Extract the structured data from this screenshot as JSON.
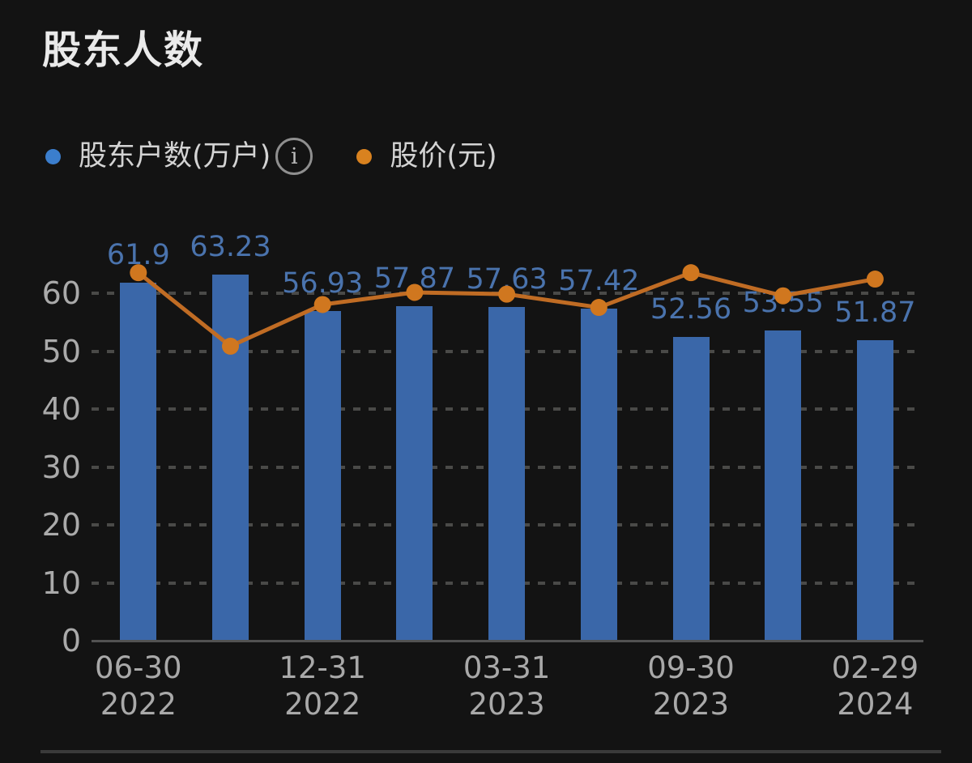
{
  "title": "股东人数",
  "legend": {
    "series1": {
      "label": "股东户数(万户)",
      "dot_color": "#3b7ecd"
    },
    "info_glyph": "i",
    "series2": {
      "label": "股价(元)",
      "dot_color": "#d9821f"
    }
  },
  "colors": {
    "background": "#131313",
    "bar_fill": "#3a67a9",
    "bar_label_text": "#4a73ad",
    "line_stroke": "#c06c24",
    "marker_fill": "#d0771f",
    "axis_text": "#aaaaaa",
    "grid_dash": "#4a4a48"
  },
  "chart_data": {
    "type": "bar",
    "title": "股东人数",
    "grid": "dashed horizontal",
    "legend_position": "top",
    "ylim": [
      0,
      65
    ],
    "y_ticks": [
      "0",
      "10",
      "20",
      "30",
      "40",
      "50",
      "60"
    ],
    "y_tick_values": [
      0,
      10,
      20,
      30,
      40,
      50,
      60
    ],
    "series": [
      {
        "name": "股东户数(万户)",
        "type": "bar",
        "values": [
          61.9,
          63.23,
          56.93,
          57.87,
          57.63,
          57.42,
          52.56,
          53.55,
          51.87
        ],
        "data_labels": [
          "61.9",
          "63.23",
          "56.93",
          "57.87",
          "57.63",
          "57.42",
          "52.56",
          "53.55",
          "51.87"
        ]
      },
      {
        "name": "股价(元)",
        "type": "line",
        "values": [
          63.6,
          50.9,
          58.1,
          60.2,
          59.9,
          57.6,
          63.6,
          59.6,
          62.5
        ],
        "note": "no numeric labels shown on screen; values estimated from left-axis gridlines"
      }
    ],
    "x_tick_labels": [
      {
        "bar_index": 0,
        "line1": "06-30",
        "line2": "2022"
      },
      {
        "bar_index": 2,
        "line1": "12-31",
        "line2": "2022"
      },
      {
        "bar_index": 4,
        "line1": "03-31",
        "line2": "2023"
      },
      {
        "bar_index": 6,
        "line1": "09-30",
        "line2": "2023"
      },
      {
        "bar_index": 8,
        "line1": "02-29",
        "line2": "2024"
      }
    ]
  }
}
